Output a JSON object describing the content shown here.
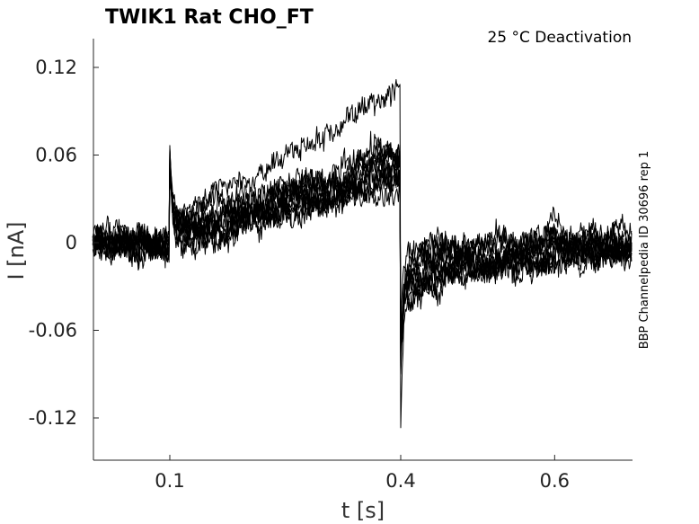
{
  "chart_data": {
    "type": "line",
    "title": "TWIK1  Rat  CHO_FT",
    "annotation": "25 °C  Deactivation",
    "side_label": "BBP Channelpedia ID 30696 rep 1",
    "xlabel": "t [s]",
    "ylabel": "I [nA]",
    "xlim": [
      0.0,
      0.7
    ],
    "ylim": [
      -0.15,
      0.138
    ],
    "xticks": [
      0.1,
      0.4,
      0.6
    ],
    "xtick_labels": [
      "0.1",
      "0.4",
      "0.6"
    ],
    "yticks": [
      0.12,
      0.06,
      0,
      -0.06,
      -0.12
    ],
    "ytick_labels": [
      "0.12",
      "0.06",
      "0",
      "-0.06",
      "-0.12"
    ],
    "grid": false,
    "line_color": "#000000",
    "protocol": {
      "step_on": 0.1,
      "step_off": 0.4,
      "onset_spike": 0.06,
      "offset_spike": -0.125
    },
    "series": [
      {
        "pre": 0.002,
        "ramp": [
          0.01,
          0.058
        ],
        "tail": [
          -0.04,
          -0.002
        ],
        "tail_tau": 0.14
      },
      {
        "pre": 0.0,
        "ramp": [
          0.0,
          0.05
        ],
        "tail": [
          -0.03,
          -0.004
        ],
        "tail_tau": 0.13
      },
      {
        "pre": 0.0,
        "ramp": [
          0.01,
          0.055
        ],
        "tail": [
          -0.025,
          0.0
        ],
        "tail_tau": 0.12
      },
      {
        "pre": 0.001,
        "ramp": [
          0.005,
          0.048
        ],
        "tail": [
          -0.02,
          0.002
        ],
        "tail_tau": 0.1
      },
      {
        "pre": -0.001,
        "ramp": [
          0.0,
          0.045
        ],
        "tail": [
          -0.02,
          -0.002
        ],
        "tail_tau": 0.11
      },
      {
        "pre": 0.0,
        "ramp": [
          0.005,
          0.04
        ],
        "tail": [
          -0.015,
          0.0
        ],
        "tail_tau": 0.09
      },
      {
        "pre": 0.001,
        "ramp": [
          0.01,
          0.062
        ],
        "tail": [
          -0.03,
          0.001
        ],
        "tail_tau": 0.12
      },
      {
        "pre": 0.0,
        "ramp": [
          0.0,
          0.052
        ],
        "tail": [
          -0.02,
          -0.001
        ],
        "tail_tau": 0.1
      },
      {
        "pre": -0.001,
        "ramp": [
          0.005,
          0.045
        ],
        "tail": [
          -0.01,
          0.0
        ],
        "tail_tau": 0.08
      },
      {
        "pre": 0.002,
        "ramp": [
          0.015,
          0.06
        ],
        "tail": [
          -0.035,
          0.0
        ],
        "tail_tau": 0.15
      },
      {
        "pre": 0.0,
        "ramp": [
          0.015,
          0.105
        ],
        "tail": [
          -0.03,
          -0.003
        ],
        "tail_tau": 0.12
      }
    ]
  }
}
